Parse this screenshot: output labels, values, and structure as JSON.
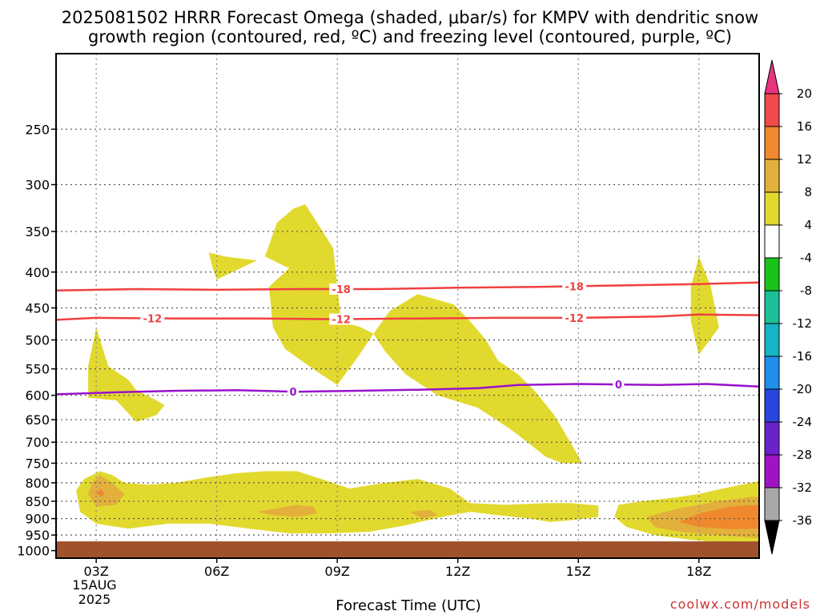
{
  "chart_data": {
    "type": "heatmap",
    "title_lines": [
      "2025081502 HRRR Forecast Omega (shaded, μbar/s) for KMPV with dendritic snow",
      "growth region (contoured, red, ºC) and freezing level (contoured, purple, ºC)"
    ],
    "xlabel": "Forecast Time (UTC)",
    "ylabel": "",
    "x_ticks": [
      "03Z",
      "06Z",
      "09Z",
      "12Z",
      "15Z",
      "18Z"
    ],
    "x_tick_hours": [
      3,
      6,
      9,
      12,
      15,
      18
    ],
    "x_date_labels": [
      "15AUG",
      "2025"
    ],
    "xlim": [
      2.0,
      19.5
    ],
    "y_ticks": [
      250,
      300,
      350,
      400,
      450,
      500,
      550,
      600,
      650,
      700,
      750,
      800,
      850,
      900,
      950,
      1000
    ],
    "ylim_hPa": [
      195,
      1025
    ],
    "y_scale": "log",
    "grid": true,
    "ground_level_hPa": 970,
    "ground_color": "#a0522d",
    "credit": "coolwx.com/models",
    "colorbar": {
      "labels": [
        "20",
        "16",
        "12",
        "8",
        "4",
        "-4",
        "-8",
        "-12",
        "-16",
        "-20",
        "-24",
        "-28",
        "-32",
        "-36"
      ],
      "colors": [
        "#e8337e",
        "#f04a4a",
        "#f0892d",
        "#e3b03b",
        "#e2d92e",
        "#ffffff",
        "#19c419",
        "#1bc09a",
        "#16b4c4",
        "#1e8fea",
        "#2947e0",
        "#6a23cc",
        "#a013c4",
        "#a8a8a8",
        "#000000"
      ]
    },
    "omega_fills": [
      {
        "level": 4,
        "color": "#e2d92e",
        "points": [
          [
            2.5,
            820
          ],
          [
            2.7,
            790
          ],
          [
            3.1,
            770
          ],
          [
            3.4,
            780
          ],
          [
            3.7,
            800
          ],
          [
            4.3,
            805
          ],
          [
            5.0,
            800
          ],
          [
            5.8,
            785
          ],
          [
            6.5,
            775
          ],
          [
            7.2,
            770
          ],
          [
            8.0,
            770
          ],
          [
            8.6,
            790
          ],
          [
            9.3,
            815
          ],
          [
            10.2,
            800
          ],
          [
            11.0,
            790
          ],
          [
            11.8,
            815
          ],
          [
            12.3,
            855
          ],
          [
            13.2,
            860
          ],
          [
            14.2,
            855
          ],
          [
            14.8,
            855
          ],
          [
            15.5,
            862
          ],
          [
            15.5,
            895
          ],
          [
            14.8,
            905
          ],
          [
            14.3,
            910
          ],
          [
            13.8,
            900
          ],
          [
            13.0,
            890
          ],
          [
            12.3,
            880
          ],
          [
            11.6,
            895
          ],
          [
            10.7,
            920
          ],
          [
            9.8,
            940
          ],
          [
            8.8,
            945
          ],
          [
            7.8,
            945
          ],
          [
            6.8,
            930
          ],
          [
            5.8,
            915
          ],
          [
            4.8,
            915
          ],
          [
            3.8,
            930
          ],
          [
            3.0,
            915
          ],
          [
            2.6,
            880
          ]
        ]
      },
      {
        "level": 4,
        "color": "#e2d92e",
        "points": [
          [
            16.0,
            860
          ],
          [
            16.6,
            850
          ],
          [
            17.4,
            840
          ],
          [
            18.0,
            830
          ],
          [
            18.6,
            815
          ],
          [
            19.3,
            800
          ],
          [
            19.5,
            795
          ],
          [
            19.5,
            975
          ],
          [
            18.6,
            975
          ],
          [
            17.8,
            965
          ],
          [
            16.9,
            950
          ],
          [
            16.2,
            925
          ],
          [
            15.9,
            895
          ]
        ]
      },
      {
        "level": 4,
        "color": "#e2d92e",
        "points": [
          [
            2.8,
            605
          ],
          [
            2.8,
            545
          ],
          [
            3.0,
            480
          ],
          [
            3.3,
            545
          ],
          [
            3.8,
            570
          ],
          [
            4.0,
            590
          ],
          [
            4.5,
            610
          ],
          [
            4.7,
            620
          ],
          [
            4.5,
            640
          ],
          [
            4.0,
            655
          ],
          [
            3.5,
            610
          ]
        ]
      },
      {
        "level": 4,
        "color": "#e2d92e",
        "points": [
          [
            5.8,
            375
          ],
          [
            6.2,
            380
          ],
          [
            7.0,
            385
          ],
          [
            6.0,
            410
          ],
          [
            5.9,
            395
          ]
        ]
      },
      {
        "level": 4,
        "color": "#e2d92e",
        "points": [
          [
            7.2,
            380
          ],
          [
            7.5,
            340
          ],
          [
            7.9,
            325
          ],
          [
            8.2,
            320
          ],
          [
            8.5,
            340
          ],
          [
            8.9,
            370
          ],
          [
            9.0,
            420
          ],
          [
            9.1,
            470
          ],
          [
            9.6,
            480
          ],
          [
            9.9,
            490
          ],
          [
            9.5,
            530
          ],
          [
            9.0,
            580
          ],
          [
            8.6,
            560
          ],
          [
            8.2,
            540
          ],
          [
            7.7,
            515
          ],
          [
            7.4,
            480
          ],
          [
            7.3,
            420
          ],
          [
            7.8,
            395
          ]
        ]
      },
      {
        "level": 4,
        "color": "#e2d92e",
        "points": [
          [
            9.9,
            490
          ],
          [
            10.3,
            455
          ],
          [
            11.0,
            430
          ],
          [
            11.9,
            445
          ],
          [
            12.3,
            470
          ],
          [
            12.7,
            500
          ],
          [
            13.0,
            535
          ],
          [
            13.5,
            560
          ],
          [
            13.9,
            590
          ],
          [
            14.4,
            640
          ],
          [
            14.8,
            700
          ],
          [
            15.1,
            750
          ],
          [
            14.6,
            750
          ],
          [
            14.2,
            735
          ],
          [
            13.8,
            705
          ],
          [
            13.3,
            670
          ],
          [
            12.5,
            625
          ],
          [
            11.5,
            600
          ],
          [
            10.7,
            560
          ],
          [
            10.2,
            520
          ]
        ]
      },
      {
        "level": 4,
        "color": "#e2d92e",
        "points": [
          [
            17.8,
            470
          ],
          [
            17.8,
            420
          ],
          [
            18.0,
            380
          ],
          [
            18.3,
            420
          ],
          [
            18.5,
            480
          ],
          [
            18.0,
            525
          ]
        ]
      },
      {
        "level": 8,
        "color": "#e3b03b",
        "points": [
          [
            2.8,
            830
          ],
          [
            2.9,
            800
          ],
          [
            3.1,
            780
          ],
          [
            3.4,
            800
          ],
          [
            3.7,
            830
          ],
          [
            3.5,
            860
          ],
          [
            3.0,
            865
          ]
        ]
      },
      {
        "level": 8,
        "color": "#e3b03b",
        "points": [
          [
            7.0,
            880
          ],
          [
            7.5,
            870
          ],
          [
            8.0,
            860
          ],
          [
            8.4,
            865
          ],
          [
            8.5,
            885
          ],
          [
            8.0,
            895
          ],
          [
            7.4,
            890
          ]
        ]
      },
      {
        "level": 8,
        "color": "#e3b03b",
        "points": [
          [
            10.8,
            880
          ],
          [
            11.3,
            875
          ],
          [
            11.5,
            890
          ],
          [
            11.1,
            900
          ]
        ]
      },
      {
        "level": 8,
        "color": "#e3b03b",
        "points": [
          [
            16.7,
            895
          ],
          [
            17.5,
            870
          ],
          [
            18.5,
            850
          ],
          [
            19.3,
            838
          ],
          [
            19.5,
            838
          ],
          [
            19.5,
            960
          ],
          [
            18.6,
            952
          ],
          [
            17.5,
            940
          ],
          [
            16.9,
            925
          ]
        ]
      },
      {
        "level": 12,
        "color": "#f0892d",
        "points": [
          [
            3.0,
            828
          ],
          [
            3.1,
            815
          ],
          [
            3.2,
            828
          ],
          [
            3.15,
            838
          ]
        ]
      },
      {
        "level": 12,
        "color": "#f0892d",
        "points": [
          [
            17.5,
            910
          ],
          [
            18.0,
            885
          ],
          [
            18.8,
            865
          ],
          [
            19.5,
            860
          ],
          [
            19.5,
            930
          ],
          [
            18.8,
            932
          ],
          [
            18.0,
            925
          ]
        ]
      }
    ],
    "contours": [
      {
        "name": "dendritic snow growth -18",
        "value": -18,
        "color": "#f04040",
        "points": [
          [
            2.0,
            425
          ],
          [
            4,
            423
          ],
          [
            6,
            424
          ],
          [
            8,
            423
          ],
          [
            10,
            423
          ],
          [
            12,
            421
          ],
          [
            14,
            420
          ],
          [
            16,
            418
          ],
          [
            18,
            416
          ],
          [
            19.5,
            414
          ]
        ],
        "labels": [
          {
            "x": 9.1,
            "text": "-18"
          },
          {
            "x": 14.9,
            "text": "-18"
          }
        ]
      },
      {
        "name": "dendritic snow growth -12",
        "value": -12,
        "color": "#f04040",
        "points": [
          [
            2.0,
            468
          ],
          [
            3,
            465
          ],
          [
            5,
            466
          ],
          [
            7,
            466
          ],
          [
            9,
            467
          ],
          [
            11,
            466
          ],
          [
            13,
            465
          ],
          [
            15,
            465
          ],
          [
            17,
            463
          ],
          [
            18,
            460
          ],
          [
            19.5,
            461
          ]
        ],
        "labels": [
          {
            "x": 4.4,
            "text": "-12"
          },
          {
            "x": 9.1,
            "text": "-12"
          },
          {
            "x": 14.9,
            "text": "-12"
          }
        ]
      },
      {
        "name": "freezing level 0",
        "value": 0,
        "color": "#9912cc",
        "points": [
          [
            2.0,
            598
          ],
          [
            3.5,
            594
          ],
          [
            5,
            591
          ],
          [
            6.5,
            590
          ],
          [
            8,
            593
          ],
          [
            9.5,
            591
          ],
          [
            11,
            589
          ],
          [
            12.5,
            586
          ],
          [
            13.5,
            580
          ],
          [
            15,
            578
          ],
          [
            17,
            580
          ],
          [
            18.2,
            578
          ],
          [
            19.5,
            583
          ]
        ],
        "labels": [
          {
            "x": 7.9,
            "text": "0"
          },
          {
            "x": 16.0,
            "text": "0"
          }
        ]
      }
    ]
  }
}
